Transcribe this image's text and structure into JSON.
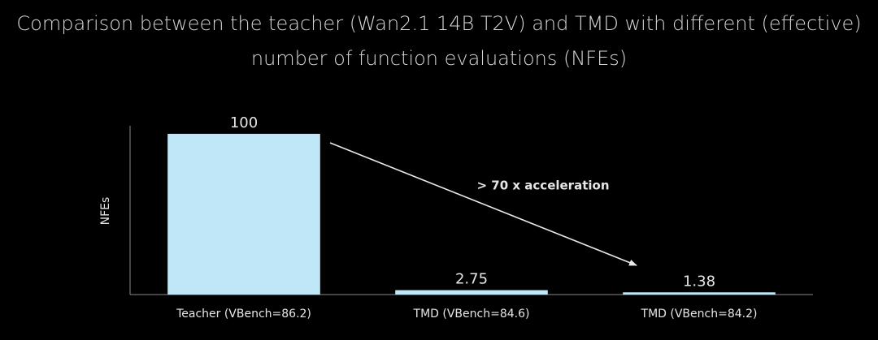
{
  "chart_data": {
    "type": "bar",
    "title": [
      "Comparison between the teacher (Wan2.1 14B T2V) and TMD with different (effective)",
      "number of function evaluations (NFEs)"
    ],
    "y_label": "NFEs",
    "categories": [
      "Teacher (VBench=86.2)",
      "TMD (VBench=84.6)",
      "TMD (VBench=84.2)"
    ],
    "values": [
      100,
      2.75,
      1.38
    ],
    "color": "#bfe7f7",
    "ylim": [
      0,
      105
    ],
    "annotation": "> 70 x acceleration"
  }
}
